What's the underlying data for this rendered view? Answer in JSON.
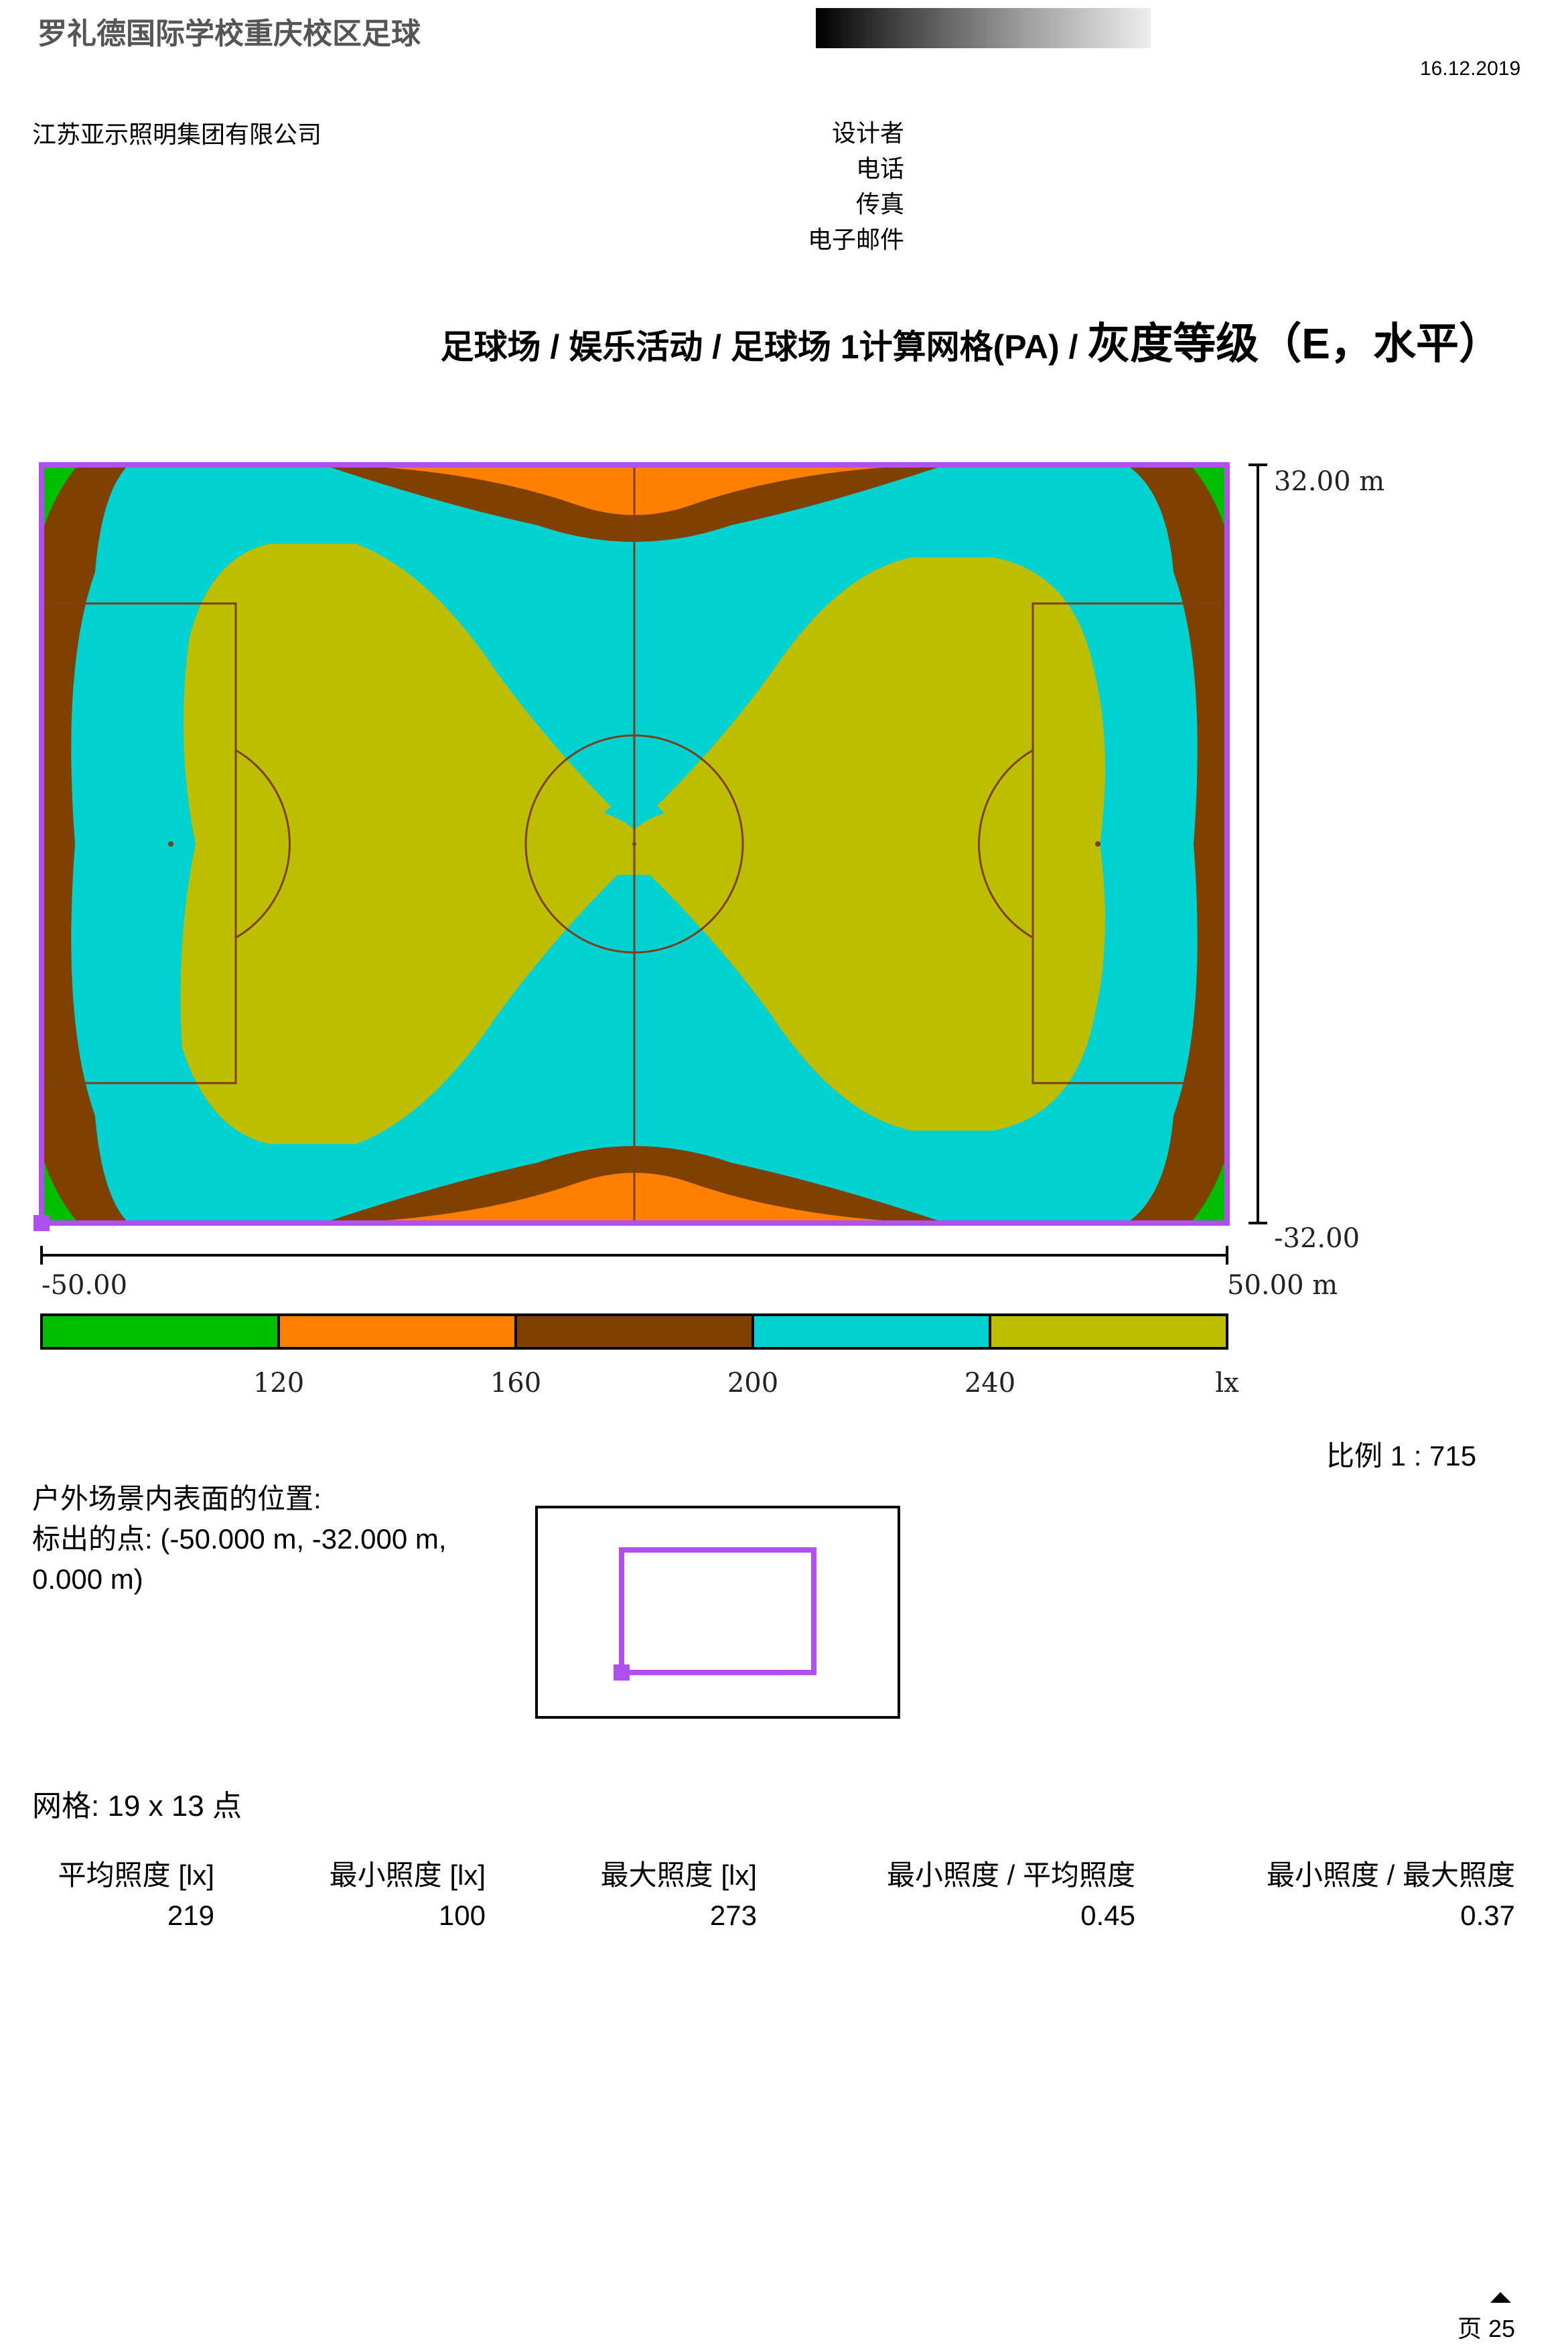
{
  "header": {
    "project_title": "罗礼德国际学校重庆校区足球",
    "date": "16.12.2019",
    "company": "江苏亚示照明集团有限公司",
    "contact_labels": [
      "设计者",
      "电话",
      "传真",
      "电子邮件"
    ]
  },
  "heading": {
    "main": "足球场 / 娱乐活动 / 足球场 1计算网格(PA) / ",
    "emphasis": "灰度等级（E，水平）"
  },
  "plot": {
    "y_max_label": "32.00 m",
    "y_min_label": "-32.00",
    "x_min_label": "-50.00",
    "x_max_label": "50.00 m",
    "colors": {
      "green": "#00BE00",
      "orange": "#FF8000",
      "brown": "#804000",
      "cyan": "#00D2D2",
      "olive": "#BEBE00",
      "frame": "#B050F0",
      "lines": "#7B3F1A"
    },
    "legend_values": [
      "120",
      "160",
      "200",
      "240"
    ],
    "legend_unit": "lx"
  },
  "scale": "比例 1 : 715",
  "location": {
    "label": "户外场景内表面的位置:",
    "marked_point": "标出的点: (-50.000 m, -32.000 m, 0.000 m)"
  },
  "grid": "网格: 19 x 13 点",
  "stats": [
    {
      "header": "平均照度 [lx]",
      "value": "219"
    },
    {
      "header": "最小照度 [lx]",
      "value": "100"
    },
    {
      "header": "最大照度 [lx]",
      "value": "273"
    },
    {
      "header": "最小照度 / 平均照度",
      "value": "0.45"
    },
    {
      "header": "最小照度 / 最大照度",
      "value": "0.37"
    }
  ],
  "page": "页 25"
}
